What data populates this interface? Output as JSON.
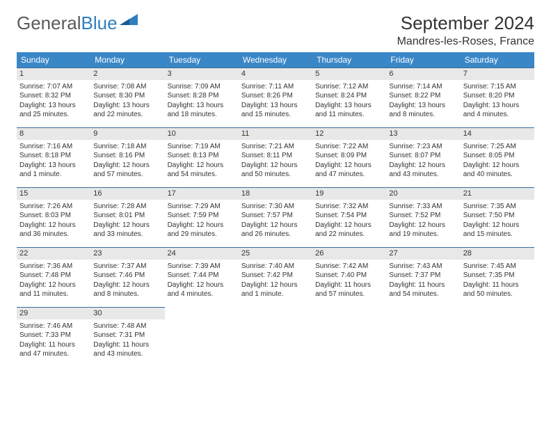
{
  "logo": {
    "text1": "General",
    "text2": "Blue"
  },
  "title": "September 2024",
  "location": "Mandres-les-Roses, France",
  "colors": {
    "header_bg": "#3a87c8",
    "header_text": "#ffffff",
    "row_border": "#3a6a9a",
    "daynum_bg": "#e8e8e8",
    "text": "#333333",
    "logo_gray": "#5a5a5a",
    "logo_blue": "#2f7fc0"
  },
  "day_headers": [
    "Sunday",
    "Monday",
    "Tuesday",
    "Wednesday",
    "Thursday",
    "Friday",
    "Saturday"
  ],
  "weeks": [
    [
      {
        "n": "1",
        "sr": "Sunrise: 7:07 AM",
        "ss": "Sunset: 8:32 PM",
        "dl": "Daylight: 13 hours and 25 minutes."
      },
      {
        "n": "2",
        "sr": "Sunrise: 7:08 AM",
        "ss": "Sunset: 8:30 PM",
        "dl": "Daylight: 13 hours and 22 minutes."
      },
      {
        "n": "3",
        "sr": "Sunrise: 7:09 AM",
        "ss": "Sunset: 8:28 PM",
        "dl": "Daylight: 13 hours and 18 minutes."
      },
      {
        "n": "4",
        "sr": "Sunrise: 7:11 AM",
        "ss": "Sunset: 8:26 PM",
        "dl": "Daylight: 13 hours and 15 minutes."
      },
      {
        "n": "5",
        "sr": "Sunrise: 7:12 AM",
        "ss": "Sunset: 8:24 PM",
        "dl": "Daylight: 13 hours and 11 minutes."
      },
      {
        "n": "6",
        "sr": "Sunrise: 7:14 AM",
        "ss": "Sunset: 8:22 PM",
        "dl": "Daylight: 13 hours and 8 minutes."
      },
      {
        "n": "7",
        "sr": "Sunrise: 7:15 AM",
        "ss": "Sunset: 8:20 PM",
        "dl": "Daylight: 13 hours and 4 minutes."
      }
    ],
    [
      {
        "n": "8",
        "sr": "Sunrise: 7:16 AM",
        "ss": "Sunset: 8:18 PM",
        "dl": "Daylight: 13 hours and 1 minute."
      },
      {
        "n": "9",
        "sr": "Sunrise: 7:18 AM",
        "ss": "Sunset: 8:16 PM",
        "dl": "Daylight: 12 hours and 57 minutes."
      },
      {
        "n": "10",
        "sr": "Sunrise: 7:19 AM",
        "ss": "Sunset: 8:13 PM",
        "dl": "Daylight: 12 hours and 54 minutes."
      },
      {
        "n": "11",
        "sr": "Sunrise: 7:21 AM",
        "ss": "Sunset: 8:11 PM",
        "dl": "Daylight: 12 hours and 50 minutes."
      },
      {
        "n": "12",
        "sr": "Sunrise: 7:22 AM",
        "ss": "Sunset: 8:09 PM",
        "dl": "Daylight: 12 hours and 47 minutes."
      },
      {
        "n": "13",
        "sr": "Sunrise: 7:23 AM",
        "ss": "Sunset: 8:07 PM",
        "dl": "Daylight: 12 hours and 43 minutes."
      },
      {
        "n": "14",
        "sr": "Sunrise: 7:25 AM",
        "ss": "Sunset: 8:05 PM",
        "dl": "Daylight: 12 hours and 40 minutes."
      }
    ],
    [
      {
        "n": "15",
        "sr": "Sunrise: 7:26 AM",
        "ss": "Sunset: 8:03 PM",
        "dl": "Daylight: 12 hours and 36 minutes."
      },
      {
        "n": "16",
        "sr": "Sunrise: 7:28 AM",
        "ss": "Sunset: 8:01 PM",
        "dl": "Daylight: 12 hours and 33 minutes."
      },
      {
        "n": "17",
        "sr": "Sunrise: 7:29 AM",
        "ss": "Sunset: 7:59 PM",
        "dl": "Daylight: 12 hours and 29 minutes."
      },
      {
        "n": "18",
        "sr": "Sunrise: 7:30 AM",
        "ss": "Sunset: 7:57 PM",
        "dl": "Daylight: 12 hours and 26 minutes."
      },
      {
        "n": "19",
        "sr": "Sunrise: 7:32 AM",
        "ss": "Sunset: 7:54 PM",
        "dl": "Daylight: 12 hours and 22 minutes."
      },
      {
        "n": "20",
        "sr": "Sunrise: 7:33 AM",
        "ss": "Sunset: 7:52 PM",
        "dl": "Daylight: 12 hours and 19 minutes."
      },
      {
        "n": "21",
        "sr": "Sunrise: 7:35 AM",
        "ss": "Sunset: 7:50 PM",
        "dl": "Daylight: 12 hours and 15 minutes."
      }
    ],
    [
      {
        "n": "22",
        "sr": "Sunrise: 7:36 AM",
        "ss": "Sunset: 7:48 PM",
        "dl": "Daylight: 12 hours and 11 minutes."
      },
      {
        "n": "23",
        "sr": "Sunrise: 7:37 AM",
        "ss": "Sunset: 7:46 PM",
        "dl": "Daylight: 12 hours and 8 minutes."
      },
      {
        "n": "24",
        "sr": "Sunrise: 7:39 AM",
        "ss": "Sunset: 7:44 PM",
        "dl": "Daylight: 12 hours and 4 minutes."
      },
      {
        "n": "25",
        "sr": "Sunrise: 7:40 AM",
        "ss": "Sunset: 7:42 PM",
        "dl": "Daylight: 12 hours and 1 minute."
      },
      {
        "n": "26",
        "sr": "Sunrise: 7:42 AM",
        "ss": "Sunset: 7:40 PM",
        "dl": "Daylight: 11 hours and 57 minutes."
      },
      {
        "n": "27",
        "sr": "Sunrise: 7:43 AM",
        "ss": "Sunset: 7:37 PM",
        "dl": "Daylight: 11 hours and 54 minutes."
      },
      {
        "n": "28",
        "sr": "Sunrise: 7:45 AM",
        "ss": "Sunset: 7:35 PM",
        "dl": "Daylight: 11 hours and 50 minutes."
      }
    ],
    [
      {
        "n": "29",
        "sr": "Sunrise: 7:46 AM",
        "ss": "Sunset: 7:33 PM",
        "dl": "Daylight: 11 hours and 47 minutes."
      },
      {
        "n": "30",
        "sr": "Sunrise: 7:48 AM",
        "ss": "Sunset: 7:31 PM",
        "dl": "Daylight: 11 hours and 43 minutes."
      },
      null,
      null,
      null,
      null,
      null
    ]
  ]
}
